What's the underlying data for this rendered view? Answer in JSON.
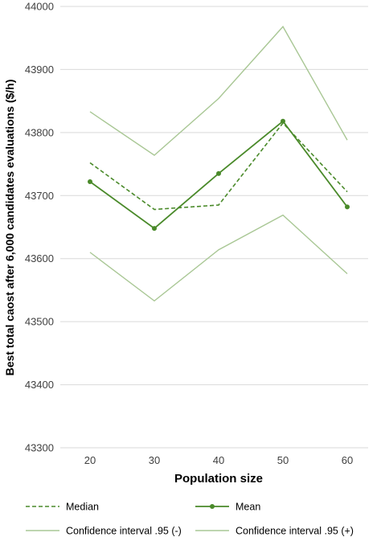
{
  "chart_data": {
    "type": "line",
    "title": "",
    "xlabel": "Population size",
    "ylabel": "Best total caost after 6,000 candidates evaluations ($/h)",
    "categories": [
      "20",
      "30",
      "40",
      "50",
      "60"
    ],
    "ylim": [
      43300,
      44000
    ],
    "yticks": [
      43300,
      43400,
      43500,
      43600,
      43700,
      43800,
      43900,
      44000
    ],
    "ytick_labels": [
      "43300",
      "43400",
      "43500",
      "43600",
      "43700",
      "43800",
      "43900",
      "44000"
    ],
    "grid": "horizontal",
    "legend_position": "bottom",
    "series": [
      {
        "name": "Median",
        "values": [
          43752,
          43678,
          43685,
          43815,
          43706
        ],
        "color": "#4a8a2a",
        "style": "dashed",
        "marker": false
      },
      {
        "name": "Mean",
        "values": [
          43722,
          43648,
          43735,
          43818,
          43682
        ],
        "color": "#4a8a2a",
        "style": "solid",
        "marker": true
      },
      {
        "name": "Confidence interval .95 (-)",
        "values": [
          43610,
          43533,
          43614,
          43669,
          43576
        ],
        "color": "#a9c795",
        "style": "solid",
        "marker": false
      },
      {
        "name": "Confidence interval .95 (+)",
        "values": [
          43833,
          43764,
          43854,
          43968,
          43788
        ],
        "color": "#a9c795",
        "style": "solid",
        "marker": false
      }
    ]
  }
}
